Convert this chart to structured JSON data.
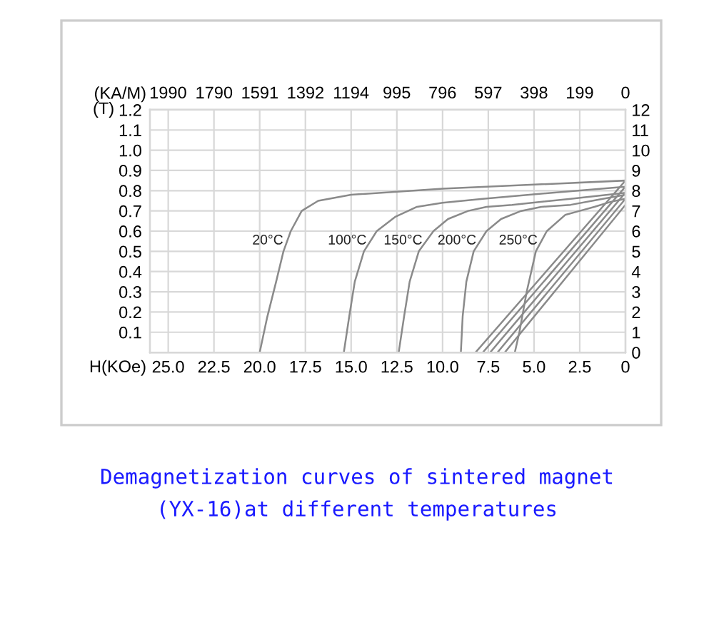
{
  "chart_data": {
    "type": "line",
    "xlabel": "H(KOe)",
    "x2label": "(KA/M)",
    "ylabel": "(T)",
    "xlim": [
      26,
      0
    ],
    "x2lim": [
      2069,
      0
    ],
    "ylim": [
      0,
      1.2
    ],
    "y2lim": [
      0,
      12
    ],
    "xticks": [
      {
        "value": 25,
        "label": "25.0"
      },
      {
        "value": 22.5,
        "label": "22.5"
      },
      {
        "value": 20,
        "label": "20.0"
      },
      {
        "value": 17.5,
        "label": "17.5"
      },
      {
        "value": 15,
        "label": "15.0"
      },
      {
        "value": 12.5,
        "label": "12.5"
      },
      {
        "value": 10,
        "label": "10.0"
      },
      {
        "value": 7.5,
        "label": "7.5"
      },
      {
        "value": 5,
        "label": "5.0"
      },
      {
        "value": 2.5,
        "label": "2.5"
      },
      0
    ],
    "x2ticks": [
      1990,
      1790,
      1591,
      1392,
      1194,
      995,
      796,
      597,
      398,
      199,
      0
    ],
    "yticks": [
      0.1,
      0.2,
      0.3,
      0.4,
      0.5,
      0.6,
      0.7,
      0.8,
      0.9,
      {
        "value": 1.0,
        "label": "1.0"
      },
      1.1,
      1.2
    ],
    "y2ticks": [
      0,
      1,
      2,
      3,
      4,
      5,
      6,
      7,
      8,
      9,
      10,
      11,
      12
    ],
    "grid": true,
    "legend": false,
    "marker": "none",
    "line_style": "solid",
    "series": [
      {
        "name": "20°C",
        "color": "#8a8a8a",
        "x": [
          0,
          5,
          10,
          15,
          16.8,
          17.7,
          18.3,
          18.7,
          19.1,
          19.6,
          20.0
        ],
        "values": [
          0.85,
          0.83,
          0.81,
          0.78,
          0.75,
          0.7,
          0.6,
          0.5,
          0.35,
          0.17,
          0
        ]
      },
      {
        "name": "100°C",
        "color": "#8a8a8a",
        "x": [
          0,
          4,
          7.8,
          10,
          11.4,
          12.6,
          13.6,
          14.3,
          14.8,
          15.1,
          15.4
        ],
        "values": [
          0.82,
          0.79,
          0.76,
          0.74,
          0.72,
          0.67,
          0.6,
          0.5,
          0.35,
          0.18,
          0
        ]
      },
      {
        "name": "150°C",
        "color": "#8a8a8a",
        "x": [
          0,
          3,
          6.2,
          7.6,
          8.6,
          9.7,
          10.5,
          11.3,
          11.8,
          12.1,
          12.4
        ],
        "values": [
          0.79,
          0.76,
          0.73,
          0.72,
          0.7,
          0.66,
          0.6,
          0.5,
          0.35,
          0.18,
          0
        ]
      },
      {
        "name": "200°C",
        "color": "#8a8a8a",
        "x": [
          0,
          1.5,
          3.0,
          4.6,
          5.7,
          6.8,
          7.6,
          8.3,
          8.7,
          8.9,
          9.0
        ],
        "values": [
          0.78,
          0.755,
          0.73,
          0.72,
          0.7,
          0.66,
          0.6,
          0.5,
          0.35,
          0.18,
          0
        ]
      },
      {
        "name": "250°C",
        "color": "#8a8a8a",
        "x": [
          0,
          0.8,
          1.7,
          2.5,
          3.3,
          4.3,
          4.9,
          5.4,
          5.8,
          6.05
        ],
        "values": [
          0.76,
          0.745,
          0.72,
          0.7,
          0.68,
          0.6,
          0.5,
          0.3,
          0.1,
          0
        ]
      },
      {
        "color": "#8a8a8a",
        "x": [
          0,
          8.2
        ],
        "values": [
          0.85,
          0
        ]
      },
      {
        "color": "#8a8a8a",
        "x": [
          0,
          7.8
        ],
        "values": [
          0.82,
          0
        ]
      },
      {
        "color": "#8a8a8a",
        "x": [
          0,
          7.4
        ],
        "values": [
          0.79,
          0
        ]
      },
      {
        "color": "#8a8a8a",
        "x": [
          0,
          7.0
        ],
        "values": [
          0.76,
          0
        ]
      },
      {
        "color": "#8a8a8a",
        "x": [
          0,
          6.6
        ],
        "values": [
          0.73,
          0
        ]
      }
    ],
    "annotations": [
      "Demagnetization curves of sintered magnet",
      "(YX-16)at different temperatures"
    ]
  }
}
